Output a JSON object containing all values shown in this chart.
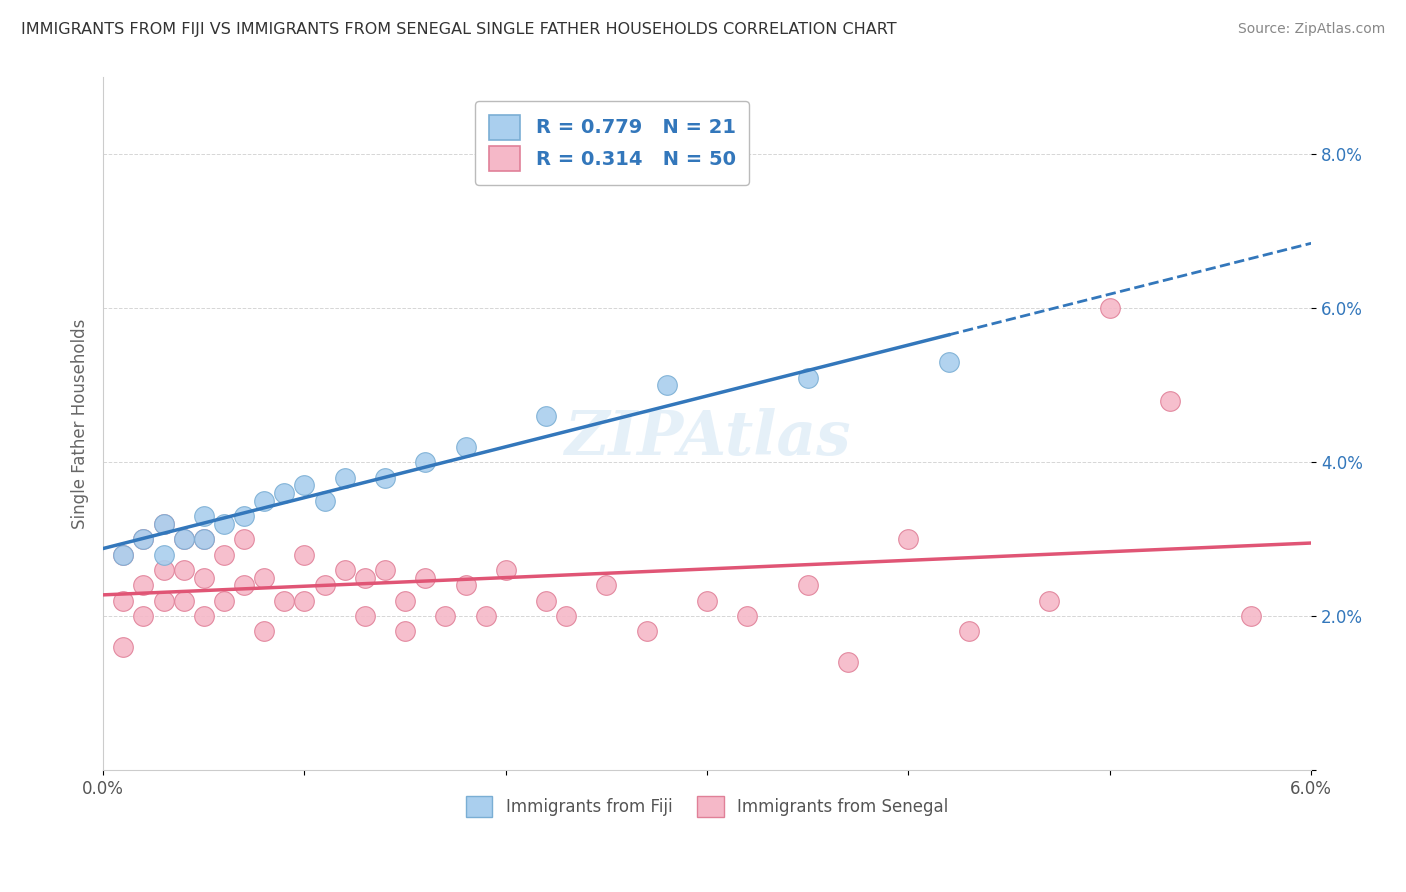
{
  "title": "IMMIGRANTS FROM FIJI VS IMMIGRANTS FROM SENEGAL SINGLE FATHER HOUSEHOLDS CORRELATION CHART",
  "source": "Source: ZipAtlas.com",
  "ylabel": "Single Father Households",
  "xlabel_fiji": "Immigrants from Fiji",
  "xlabel_senegal": "Immigrants from Senegal",
  "fiji_R": 0.779,
  "fiji_N": 21,
  "senegal_R": 0.314,
  "senegal_N": 50,
  "xlim": [
    0.0,
    0.06
  ],
  "ylim": [
    0.0,
    0.09
  ],
  "fiji_color": "#aacfee",
  "fiji_edge_color": "#7aaed4",
  "senegal_color": "#f5b8c8",
  "senegal_edge_color": "#e08098",
  "fiji_line_color": "#3377bb",
  "senegal_line_color": "#e05575",
  "watermark": "ZIPAtlas",
  "fiji_x": [
    0.001,
    0.002,
    0.003,
    0.003,
    0.004,
    0.005,
    0.005,
    0.006,
    0.007,
    0.008,
    0.009,
    0.01,
    0.011,
    0.012,
    0.014,
    0.016,
    0.018,
    0.022,
    0.028,
    0.035,
    0.042
  ],
  "fiji_y": [
    0.028,
    0.03,
    0.028,
    0.032,
    0.03,
    0.03,
    0.033,
    0.032,
    0.033,
    0.035,
    0.036,
    0.037,
    0.035,
    0.038,
    0.038,
    0.04,
    0.042,
    0.046,
    0.05,
    0.051,
    0.053
  ],
  "senegal_x": [
    0.001,
    0.001,
    0.001,
    0.002,
    0.002,
    0.002,
    0.003,
    0.003,
    0.003,
    0.004,
    0.004,
    0.004,
    0.005,
    0.005,
    0.005,
    0.006,
    0.006,
    0.007,
    0.007,
    0.008,
    0.008,
    0.009,
    0.01,
    0.01,
    0.011,
    0.012,
    0.013,
    0.013,
    0.014,
    0.015,
    0.015,
    0.016,
    0.017,
    0.018,
    0.019,
    0.02,
    0.022,
    0.023,
    0.025,
    0.027,
    0.03,
    0.032,
    0.035,
    0.037,
    0.04,
    0.043,
    0.047,
    0.05,
    0.053,
    0.057
  ],
  "senegal_y": [
    0.028,
    0.022,
    0.016,
    0.03,
    0.024,
    0.02,
    0.032,
    0.026,
    0.022,
    0.03,
    0.026,
    0.022,
    0.03,
    0.025,
    0.02,
    0.028,
    0.022,
    0.03,
    0.024,
    0.025,
    0.018,
    0.022,
    0.028,
    0.022,
    0.024,
    0.026,
    0.025,
    0.02,
    0.026,
    0.022,
    0.018,
    0.025,
    0.02,
    0.024,
    0.02,
    0.026,
    0.022,
    0.02,
    0.024,
    0.018,
    0.022,
    0.02,
    0.024,
    0.014,
    0.03,
    0.018,
    0.022,
    0.06,
    0.048,
    0.02
  ]
}
